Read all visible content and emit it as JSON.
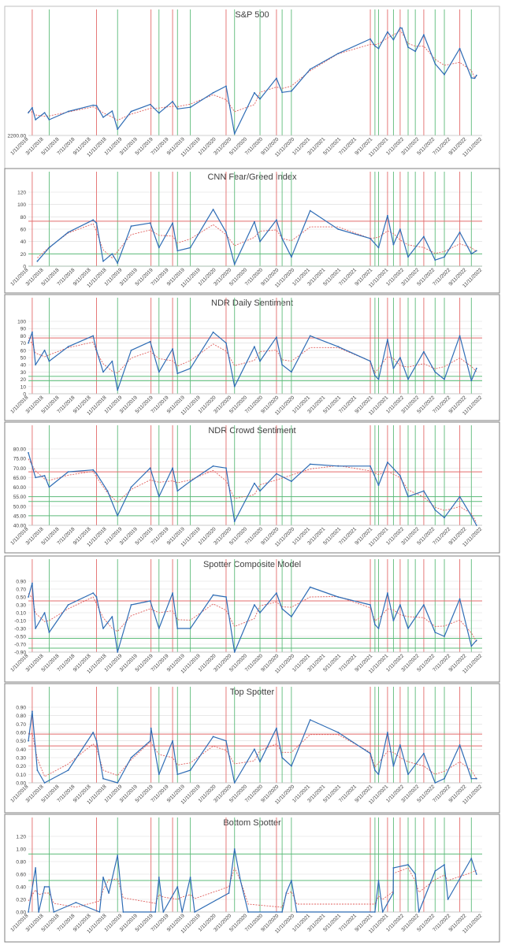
{
  "x_tick_labels": [
    "1/11/2018",
    "3/11/2018",
    "5/11/2018",
    "7/11/2018",
    "9/11/2018",
    "11/11/2018",
    "1/11/2019",
    "3/11/2019",
    "5/11/2019",
    "7/11/2019",
    "9/11/2019",
    "11/11/2019",
    "1/11/2020",
    "3/11/2020",
    "5/11/2020",
    "7/11/2020",
    "9/11/2020",
    "11/11/2020",
    "1/11/2021",
    "3/11/2021",
    "5/11/2021",
    "7/11/2021",
    "9/11/2021",
    "11/11/2021",
    "1/11/2022",
    "3/11/2022",
    "5/11/2022",
    "7/11/2022",
    "9/11/2022",
    "11/11/2022"
  ],
  "red_vertical_dates": [
    "2018-01-26",
    "2018-10-03",
    "2019-05-03",
    "2019-07-26",
    "2020-02-19",
    "2020-09-02",
    "2021-09-02",
    "2021-11-08",
    "2021-12-27",
    "2022-03-29",
    "2022-08-16"
  ],
  "green_vertical_dates": [
    "2018-04-02",
    "2018-12-24",
    "2019-06-03",
    "2019-08-14",
    "2019-10-03",
    "2020-03-23",
    "2020-06-30",
    "2020-09-24",
    "2020-10-30",
    "2021-09-20",
    "2021-10-04",
    "2021-12-01",
    "2022-01-27",
    "2022-02-24",
    "2022-05-12",
    "2022-06-17",
    "2022-09-30"
  ],
  "colors": {
    "series": "#2e6cb5",
    "trend": "#e0615f",
    "red_line": "#e36c6c",
    "green_line": "#5dbb7a",
    "grid": "#d9d9d9",
    "panel_border": "#7f7f7f",
    "text": "#404040"
  },
  "chart_data": [
    {
      "type": "line",
      "title": "S&P 500",
      "x_start": "2018-01-11",
      "x_end": "2022-11-11",
      "yticks": [
        "2200.00"
      ],
      "ylim": [
        2200,
        4900
      ],
      "grid": false,
      "h_lines": [],
      "series": [
        {
          "x": [
            "2018-01-11",
            "2018-01-26",
            "2018-02-08",
            "2018-03-15",
            "2018-04-02",
            "2018-06-15",
            "2018-09-20",
            "2018-10-03",
            "2018-10-29",
            "2018-12-03",
            "2018-12-24",
            "2019-02-15",
            "2019-04-30",
            "2019-06-03",
            "2019-07-26",
            "2019-08-14",
            "2019-10-03",
            "2019-12-31",
            "2020-02-19",
            "2020-03-23",
            "2020-06-08",
            "2020-06-30",
            "2020-09-02",
            "2020-09-24",
            "2020-10-30",
            "2021-01-11",
            "2021-04-30",
            "2021-09-02",
            "2021-09-20",
            "2021-10-04",
            "2021-11-08",
            "2021-12-01",
            "2021-12-27",
            "2022-01-03",
            "2022-01-27",
            "2022-02-24",
            "2022-03-29",
            "2022-05-12",
            "2022-06-17",
            "2022-08-16",
            "2022-09-30",
            "2022-10-13",
            "2022-10-20"
          ],
          "y": [
            2750,
            2870,
            2580,
            2750,
            2580,
            2780,
            2930,
            2920,
            2640,
            2790,
            2350,
            2780,
            2950,
            2740,
            3020,
            2840,
            2880,
            3230,
            3390,
            2240,
            3230,
            3080,
            3580,
            3240,
            3270,
            3800,
            4180,
            4530,
            4360,
            4300,
            4700,
            4510,
            4800,
            4790,
            4330,
            4230,
            4630,
            3930,
            3670,
            4300,
            3590,
            3580,
            3650
          ]
        }
      ]
    },
    {
      "type": "line",
      "title": "CNN Fear/Greed Index",
      "x_start": "2018-01-11",
      "x_end": "2022-11-11",
      "yticks": [
        "0",
        "20",
        "40",
        "60",
        "80",
        "100",
        "120"
      ],
      "ylim": [
        0,
        120
      ],
      "grid": true,
      "h_lines": [
        {
          "value": 73,
          "color": "red"
        },
        {
          "value": 20,
          "color": "green"
        },
        {
          "value": 0,
          "color": "green"
        }
      ],
      "series": [
        {
          "x": [
            "2018-02-15",
            "2018-04-02",
            "2018-06-15",
            "2018-09-20",
            "2018-10-03",
            "2018-10-29",
            "2018-12-03",
            "2018-12-24",
            "2019-02-15",
            "2019-04-30",
            "2019-06-03",
            "2019-07-26",
            "2019-08-14",
            "2019-10-03",
            "2019-12-31",
            "2020-02-19",
            "2020-03-23",
            "2020-06-08",
            "2020-06-30",
            "2020-09-02",
            "2020-09-24",
            "2020-10-30",
            "2021-01-11",
            "2021-04-30",
            "2021-09-02",
            "2021-10-04",
            "2021-11-08",
            "2021-12-01",
            "2021-12-27",
            "2022-01-27",
            "2022-03-29",
            "2022-05-12",
            "2022-06-17",
            "2022-08-16",
            "2022-09-30",
            "2022-10-20"
          ],
          "y": [
            8,
            30,
            55,
            75,
            70,
            8,
            20,
            5,
            65,
            70,
            30,
            70,
            25,
            30,
            92,
            55,
            3,
            72,
            40,
            75,
            45,
            15,
            90,
            60,
            45,
            30,
            82,
            35,
            60,
            15,
            48,
            10,
            15,
            55,
            20,
            25
          ]
        }
      ]
    },
    {
      "type": "line",
      "title": "NDR Daily Sentiment",
      "x_start": "2018-01-11",
      "x_end": "2022-11-11",
      "yticks": [
        "0",
        "10",
        "20",
        "30",
        "40",
        "50",
        "60",
        "70",
        "80",
        "90",
        "100"
      ],
      "ylim": [
        0,
        100
      ],
      "grid": true,
      "h_lines": [
        {
          "value": 77,
          "color": "red"
        },
        {
          "value": 24,
          "color": "green"
        },
        {
          "value": 18,
          "color": "green"
        }
      ],
      "series": [
        {
          "x": [
            "2018-01-11",
            "2018-01-26",
            "2018-02-08",
            "2018-03-15",
            "2018-04-02",
            "2018-06-15",
            "2018-09-20",
            "2018-10-03",
            "2018-10-29",
            "2018-12-03",
            "2018-12-24",
            "2019-02-15",
            "2019-04-30",
            "2019-06-03",
            "2019-07-26",
            "2019-08-14",
            "2019-10-03",
            "2019-12-31",
            "2020-02-19",
            "2020-03-23",
            "2020-06-08",
            "2020-06-30",
            "2020-09-02",
            "2020-09-24",
            "2020-10-30",
            "2021-01-11",
            "2021-04-30",
            "2021-09-02",
            "2021-09-20",
            "2021-10-04",
            "2021-11-08",
            "2021-12-01",
            "2021-12-27",
            "2022-01-27",
            "2022-03-29",
            "2022-05-12",
            "2022-06-17",
            "2022-08-16",
            "2022-09-30",
            "2022-10-20"
          ],
          "y": [
            70,
            85,
            40,
            60,
            45,
            65,
            80,
            60,
            30,
            45,
            5,
            60,
            72,
            30,
            62,
            28,
            35,
            85,
            70,
            10,
            65,
            45,
            78,
            40,
            30,
            80,
            65,
            45,
            25,
            20,
            75,
            35,
            50,
            20,
            58,
            30,
            20,
            80,
            18,
            35
          ]
        }
      ]
    },
    {
      "type": "line",
      "title": "NDR Crowd Sentiment",
      "x_start": "2018-01-11",
      "x_end": "2022-11-11",
      "yticks": [
        "40.00",
        "45.00",
        "50.00",
        "55.00",
        "60.00",
        "65.00",
        "70.00",
        "75.00",
        "80.00"
      ],
      "ylim": [
        40,
        80
      ],
      "grid": true,
      "h_lines": [
        {
          "value": 68,
          "color": "red"
        },
        {
          "value": 55,
          "color": "green"
        },
        {
          "value": 52.5,
          "color": "green"
        },
        {
          "value": 45,
          "color": "green"
        }
      ],
      "series": [
        {
          "x": [
            "2018-01-11",
            "2018-02-08",
            "2018-03-15",
            "2018-04-02",
            "2018-06-15",
            "2018-09-20",
            "2018-10-03",
            "2018-11-15",
            "2018-12-24",
            "2019-02-15",
            "2019-04-30",
            "2019-06-03",
            "2019-07-26",
            "2019-08-14",
            "2019-10-03",
            "2019-12-31",
            "2020-02-19",
            "2020-03-23",
            "2020-06-08",
            "2020-06-30",
            "2020-09-02",
            "2020-10-30",
            "2021-01-11",
            "2021-04-30",
            "2021-09-02",
            "2021-10-04",
            "2021-11-08",
            "2021-12-27",
            "2022-01-27",
            "2022-03-29",
            "2022-05-12",
            "2022-06-17",
            "2022-08-16",
            "2022-09-30",
            "2022-10-20"
          ],
          "y": [
            78,
            65,
            66,
            60,
            68,
            69,
            67,
            58,
            45,
            60,
            70,
            55,
            70,
            58,
            63,
            71,
            70,
            42,
            62,
            58,
            67,
            63,
            72,
            71,
            71,
            61,
            73,
            66,
            55,
            58,
            48,
            44,
            55,
            45,
            40
          ]
        }
      ]
    },
    {
      "type": "line",
      "title": "Spotter Composite Model",
      "x_start": "2018-01-11",
      "x_end": "2022-11-11",
      "yticks": [
        "-0.90",
        "-0.70",
        "-0.50",
        "-0.30",
        "-0.10",
        "0.10",
        "0.30",
        "0.50",
        "0.70",
        "0.90"
      ],
      "ylim": [
        -0.9,
        0.9
      ],
      "grid": true,
      "h_lines": [
        {
          "value": 0.4,
          "color": "red"
        },
        {
          "value": -0.55,
          "color": "green"
        },
        {
          "value": -0.8,
          "color": "green"
        }
      ],
      "series": [
        {
          "x": [
            "2018-01-11",
            "2018-01-26",
            "2018-02-08",
            "2018-03-15",
            "2018-04-02",
            "2018-06-15",
            "2018-09-20",
            "2018-10-03",
            "2018-10-29",
            "2018-12-03",
            "2018-12-24",
            "2019-02-15",
            "2019-04-30",
            "2019-06-03",
            "2019-07-26",
            "2019-08-14",
            "2019-10-03",
            "2019-12-31",
            "2020-02-19",
            "2020-03-23",
            "2020-06-08",
            "2020-06-30",
            "2020-09-02",
            "2020-09-24",
            "2020-10-30",
            "2021-01-11",
            "2021-04-30",
            "2021-09-02",
            "2021-09-20",
            "2021-10-04",
            "2021-11-08",
            "2021-12-01",
            "2021-12-27",
            "2022-01-27",
            "2022-03-29",
            "2022-05-12",
            "2022-06-17",
            "2022-08-16",
            "2022-09-30",
            "2022-10-20"
          ],
          "y": [
            0.5,
            0.85,
            -0.3,
            0.1,
            -0.4,
            0.3,
            0.6,
            0.5,
            -0.3,
            0.0,
            -0.9,
            0.3,
            0.4,
            -0.3,
            0.6,
            -0.3,
            -0.3,
            0.55,
            0.5,
            -0.9,
            0.3,
            0.1,
            0.6,
            0.2,
            0.0,
            0.75,
            0.5,
            0.3,
            -0.2,
            -0.3,
            0.6,
            -0.1,
            0.3,
            -0.3,
            0.3,
            -0.4,
            -0.5,
            0.45,
            -0.75,
            -0.6
          ]
        }
      ]
    },
    {
      "type": "line",
      "title": "Top Spotter",
      "x_start": "2018-01-11",
      "x_end": "2022-11-11",
      "yticks": [
        "0.00",
        "0.10",
        "0.20",
        "0.30",
        "0.40",
        "0.50",
        "0.60",
        "0.70",
        "0.80",
        "0.90"
      ],
      "ylim": [
        0,
        0.9
      ],
      "grid": true,
      "h_lines": [
        {
          "value": 0.58,
          "color": "red"
        },
        {
          "value": 0.44,
          "color": "red"
        }
      ],
      "series": [
        {
          "x": [
            "2018-01-11",
            "2018-01-26",
            "2018-02-15",
            "2018-03-15",
            "2018-06-15",
            "2018-09-20",
            "2018-10-03",
            "2018-10-29",
            "2018-12-24",
            "2019-02-15",
            "2019-04-30",
            "2019-05-03",
            "2019-06-03",
            "2019-07-26",
            "2019-08-14",
            "2019-10-03",
            "2019-12-31",
            "2020-02-19",
            "2020-03-23",
            "2020-06-08",
            "2020-06-30",
            "2020-09-02",
            "2020-09-24",
            "2020-10-30",
            "2021-01-11",
            "2021-04-30",
            "2021-09-02",
            "2021-09-20",
            "2021-10-04",
            "2021-11-08",
            "2021-12-01",
            "2021-12-27",
            "2022-01-27",
            "2022-03-29",
            "2022-05-12",
            "2022-06-17",
            "2022-08-16",
            "2022-09-30",
            "2022-10-20"
          ],
          "y": [
            0.5,
            0.85,
            0.15,
            0.0,
            0.15,
            0.6,
            0.5,
            0.05,
            0.0,
            0.3,
            0.5,
            0.65,
            0.1,
            0.5,
            0.1,
            0.15,
            0.55,
            0.5,
            0.0,
            0.4,
            0.25,
            0.65,
            0.3,
            0.2,
            0.75,
            0.6,
            0.35,
            0.15,
            0.1,
            0.6,
            0.2,
            0.45,
            0.1,
            0.35,
            0.0,
            0.05,
            0.45,
            0.05,
            0.05
          ]
        }
      ]
    },
    {
      "type": "line",
      "title": "Bottom Spotter",
      "x_start": "2018-01-11",
      "x_end": "2022-11-11",
      "yticks": [
        "0.00",
        "0.20",
        "0.40",
        "0.60",
        "0.80",
        "1.00",
        "1.20"
      ],
      "ylim": [
        0,
        1.2
      ],
      "grid": true,
      "h_lines": [
        {
          "value": 0.92,
          "color": "green"
        },
        {
          "value": 0.5,
          "color": "green"
        }
      ],
      "series": [
        {
          "x": [
            "2018-01-11",
            "2018-02-08",
            "2018-02-20",
            "2018-03-15",
            "2018-04-02",
            "2018-04-20",
            "2018-07-15",
            "2018-10-15",
            "2018-10-29",
            "2018-11-20",
            "2018-12-24",
            "2019-01-15",
            "2019-05-20",
            "2019-06-03",
            "2019-06-20",
            "2019-08-14",
            "2019-09-01",
            "2019-10-03",
            "2019-10-20",
            "2020-03-01",
            "2020-03-23",
            "2020-04-15",
            "2020-05-15",
            "2020-09-24",
            "2020-10-10",
            "2020-10-30",
            "2020-11-20",
            "2021-09-20",
            "2021-10-04",
            "2021-10-20",
            "2021-11-30",
            "2021-12-01",
            "2022-01-27",
            "2022-02-24",
            "2022-03-10",
            "2022-05-12",
            "2022-06-17",
            "2022-07-01",
            "2022-09-30",
            "2022-10-20"
          ],
          "y": [
            0.0,
            0.7,
            0.0,
            0.4,
            0.4,
            0.0,
            0.15,
            0.0,
            0.55,
            0.3,
            0.9,
            0.0,
            0.0,
            0.55,
            0.0,
            0.4,
            0.0,
            0.55,
            0.0,
            0.3,
            1.0,
            0.5,
            0.0,
            0.0,
            0.3,
            0.5,
            0.0,
            0.0,
            0.5,
            0.0,
            0.3,
            0.7,
            0.75,
            0.6,
            0.0,
            0.65,
            0.75,
            0.2,
            0.85,
            0.6
          ]
        }
      ]
    }
  ]
}
